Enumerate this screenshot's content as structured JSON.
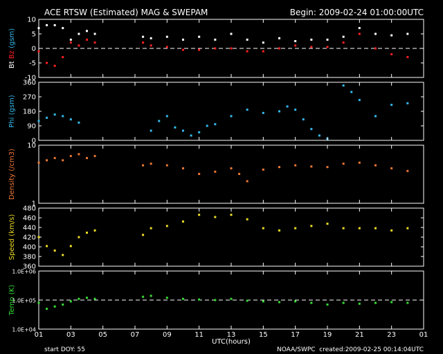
{
  "header": {
    "title": "ACE RTSW (Estimated) MAG & SWEPAM",
    "begin": "Begin: 2009-02-24 01:00:00UTC"
  },
  "footer": {
    "start_doy": "start DOY:  55",
    "org": "NOAA/SWPC",
    "created": "created:2009-02-25 00:14:04UTC"
  },
  "colors": {
    "background": "#000000",
    "frame": "#ffffff",
    "bt": "#ffffff",
    "bz": "#ff2020",
    "phi": "#33bbee",
    "density": "#ee7733",
    "speed": "#eedd22",
    "temp": "#33dd33"
  },
  "chart_data": [
    {
      "type": "scatter",
      "panel": "mag",
      "ylabel_parts": [
        "Bt",
        " ",
        "Bz",
        " (gsm)"
      ],
      "ylim": [
        -10,
        10
      ],
      "yticks": [
        "10",
        "5",
        "0",
        "-5",
        "-10"
      ],
      "reference_line": 0,
      "series": [
        {
          "name": "Bt",
          "x": [
            1,
            1.5,
            2,
            2.5,
            3,
            3.5,
            4,
            4.5,
            7.5,
            8,
            9,
            10,
            11,
            12,
            13,
            14,
            15,
            16,
            17,
            18,
            19,
            20,
            21,
            22,
            23,
            24
          ],
          "y": [
            7,
            8,
            8,
            7,
            3,
            5,
            6,
            5,
            4,
            3.5,
            4,
            3,
            4,
            3,
            5,
            3,
            2,
            3.5,
            2.5,
            3,
            3,
            4,
            7,
            5,
            4.5,
            5
          ]
        },
        {
          "name": "Bz",
          "x": [
            1,
            1.5,
            2,
            2.5,
            3,
            3.5,
            4,
            4.5,
            7.5,
            8,
            9,
            10,
            11,
            12,
            13,
            14,
            15,
            16,
            17,
            18,
            19,
            20,
            21,
            22,
            23,
            24
          ],
          "y": [
            -1,
            -5,
            -6,
            -3,
            2,
            1,
            3,
            2,
            2,
            1,
            0.5,
            -0.5,
            -0.5,
            0,
            0,
            -1,
            -1,
            0,
            1,
            0.5,
            0.5,
            2,
            5,
            0,
            -2,
            -3
          ]
        }
      ]
    },
    {
      "type": "scatter",
      "panel": "phi",
      "ylabel": "Phi (gsm)",
      "ylim": [
        0,
        360
      ],
      "yticks": [
        "360",
        "270",
        "180",
        "90",
        "0"
      ],
      "series": [
        {
          "name": "Phi",
          "x": [
            1,
            1.5,
            2,
            2.5,
            3,
            3.5,
            8,
            8.5,
            9,
            9.5,
            10,
            10.5,
            11,
            11.5,
            12,
            13,
            14,
            15,
            16,
            16.5,
            17,
            17.5,
            18,
            18.5,
            19,
            20,
            20.5,
            21,
            22,
            23,
            24
          ],
          "y": [
            120,
            140,
            160,
            150,
            130,
            110,
            60,
            120,
            150,
            80,
            60,
            30,
            50,
            90,
            100,
            150,
            190,
            170,
            180,
            210,
            190,
            130,
            70,
            30,
            10,
            340,
            300,
            250,
            150,
            220,
            230
          ]
        }
      ]
    },
    {
      "type": "scatter",
      "panel": "density",
      "ylabel": "Density (/cm3)",
      "ylim": [
        1,
        10
      ],
      "log": true,
      "yticks": [
        "10",
        "1"
      ],
      "series": [
        {
          "name": "Density",
          "x": [
            1,
            1.5,
            2,
            2.5,
            3,
            3.5,
            4,
            4.5,
            7.5,
            8,
            9,
            10,
            11,
            12,
            13,
            13.5,
            14,
            15,
            16,
            17,
            18,
            19,
            20,
            21,
            22,
            23,
            24
          ],
          "y": [
            5,
            5.5,
            6,
            5.5,
            6.5,
            7,
            6,
            6.5,
            4.5,
            4.8,
            4.5,
            4,
            3.2,
            3.5,
            4,
            3.2,
            2.4,
            3.8,
            4.2,
            4.5,
            4.3,
            4.2,
            4.8,
            5,
            4.5,
            4,
            3.6
          ]
        }
      ]
    },
    {
      "type": "scatter",
      "panel": "speed",
      "ylabel": "Speed (km/s)",
      "ylim": [
        355,
        485
      ],
      "yticks": [
        "480",
        "460",
        "440",
        "420",
        "400",
        "380",
        "360"
      ],
      "series": [
        {
          "name": "Speed",
          "x": [
            1,
            1.5,
            2,
            2.5,
            3,
            3.5,
            4,
            4.5,
            7.5,
            8,
            9,
            10,
            11,
            12,
            13,
            14,
            15,
            16,
            17,
            18,
            19,
            20,
            21,
            22,
            23,
            24
          ],
          "y": [
            420,
            400,
            390,
            380,
            400,
            420,
            430,
            435,
            425,
            440,
            445,
            455,
            470,
            465,
            470,
            460,
            440,
            435,
            440,
            445,
            450,
            440,
            440,
            440,
            435,
            440
          ]
        }
      ]
    },
    {
      "type": "scatter",
      "panel": "temp",
      "ylabel": "Temp (K)",
      "ylim": [
        10000,
        1000000
      ],
      "log": true,
      "yticks": [
        "1.0E+06",
        "1.0E+05",
        "1.0E+04"
      ],
      "reference_line": 100000,
      "series": [
        {
          "name": "Temp",
          "x": [
            1,
            1.5,
            2,
            2.5,
            3,
            3.5,
            4,
            4.5,
            7.5,
            8,
            9,
            10,
            11,
            12,
            13,
            14,
            15,
            16,
            17,
            18,
            19,
            20,
            21,
            22,
            23,
            24
          ],
          "y": [
            80000,
            50000,
            60000,
            70000,
            90000,
            110000,
            120000,
            110000,
            130000,
            140000,
            120000,
            110000,
            105000,
            100000,
            110000,
            95000,
            90000,
            85000,
            90000,
            80000,
            70000,
            80000,
            75000,
            80000,
            85000,
            80000
          ]
        }
      ]
    }
  ],
  "x_axis": {
    "label": "UTC(hours)",
    "ticks": [
      "01",
      "03",
      "05",
      "07",
      "09",
      "11",
      "13",
      "15",
      "17",
      "19",
      "21",
      "23",
      "01"
    ]
  }
}
